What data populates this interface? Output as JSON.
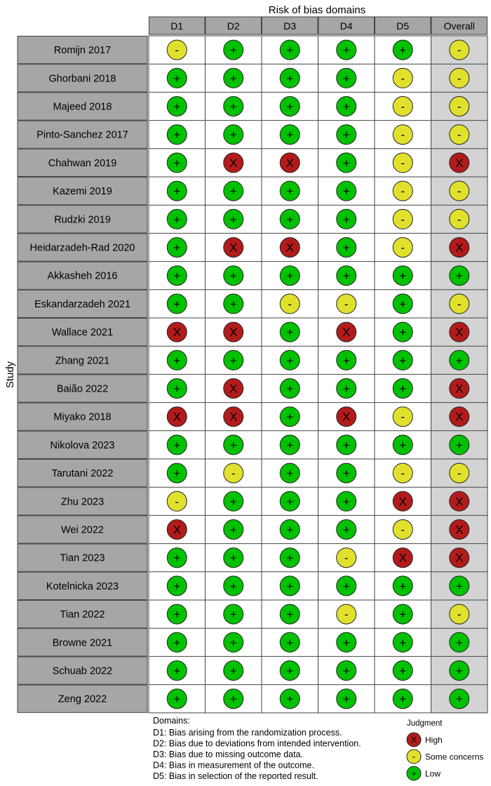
{
  "chart_data": {
    "type": "table",
    "title": "Risk of bias domains",
    "ylabel": "Study",
    "domains": [
      "D1",
      "D2",
      "D3",
      "D4",
      "D5",
      "Overall"
    ],
    "studies": [
      {
        "name": "Romijn 2017",
        "judgments": [
          "some",
          "low",
          "low",
          "low",
          "low",
          "some"
        ]
      },
      {
        "name": "Ghorbani 2018",
        "judgments": [
          "low",
          "low",
          "low",
          "low",
          "some",
          "some"
        ]
      },
      {
        "name": "Majeed 2018",
        "judgments": [
          "low",
          "low",
          "low",
          "low",
          "some",
          "some"
        ]
      },
      {
        "name": "Pinto-Sanchez 2017",
        "judgments": [
          "low",
          "low",
          "low",
          "low",
          "some",
          "some"
        ]
      },
      {
        "name": "Chahwan 2019",
        "judgments": [
          "low",
          "high",
          "high",
          "low",
          "some",
          "high"
        ]
      },
      {
        "name": "Kazemi 2019",
        "judgments": [
          "low",
          "low",
          "low",
          "low",
          "some",
          "some"
        ]
      },
      {
        "name": "Rudzki 2019",
        "judgments": [
          "low",
          "low",
          "low",
          "low",
          "some",
          "some"
        ]
      },
      {
        "name": "Heidarzadeh-Rad 2020",
        "judgments": [
          "low",
          "high",
          "high",
          "low",
          "some",
          "high"
        ]
      },
      {
        "name": "Akkasheh 2016",
        "judgments": [
          "low",
          "low",
          "low",
          "low",
          "low",
          "low"
        ]
      },
      {
        "name": "Eskandarzadeh 2021",
        "judgments": [
          "low",
          "low",
          "some",
          "some",
          "low",
          "some"
        ]
      },
      {
        "name": "Wallace 2021",
        "judgments": [
          "high",
          "high",
          "low",
          "high",
          "low",
          "high"
        ]
      },
      {
        "name": "Zhang 2021",
        "judgments": [
          "low",
          "low",
          "low",
          "low",
          "low",
          "low"
        ]
      },
      {
        "name": "Baião 2022",
        "judgments": [
          "low",
          "high",
          "low",
          "low",
          "low",
          "high"
        ]
      },
      {
        "name": "Miyako 2018",
        "judgments": [
          "high",
          "high",
          "low",
          "high",
          "some",
          "high"
        ]
      },
      {
        "name": "Nikolova 2023",
        "judgments": [
          "low",
          "low",
          "low",
          "low",
          "low",
          "low"
        ]
      },
      {
        "name": "Tarutani 2022",
        "judgments": [
          "low",
          "some",
          "low",
          "low",
          "some",
          "some"
        ]
      },
      {
        "name": "Zhu 2023",
        "judgments": [
          "some",
          "low",
          "low",
          "low",
          "high",
          "high"
        ]
      },
      {
        "name": "Wei 2022",
        "judgments": [
          "high",
          "low",
          "low",
          "low",
          "some",
          "high"
        ]
      },
      {
        "name": "Tian 2023",
        "judgments": [
          "low",
          "low",
          "low",
          "some",
          "high",
          "high"
        ]
      },
      {
        "name": "Kotelnicka 2023",
        "judgments": [
          "low",
          "low",
          "low",
          "low",
          "low",
          "low"
        ]
      },
      {
        "name": "Tian 2022",
        "judgments": [
          "low",
          "low",
          "low",
          "some",
          "low",
          "some"
        ]
      },
      {
        "name": "Browne 2021",
        "judgments": [
          "low",
          "low",
          "low",
          "low",
          "low",
          "low"
        ]
      },
      {
        "name": "Schuab 2022",
        "judgments": [
          "low",
          "low",
          "low",
          "low",
          "low",
          "low"
        ]
      },
      {
        "name": "Zeng 2022",
        "judgments": [
          "low",
          "low",
          "low",
          "low",
          "low",
          "low"
        ]
      }
    ],
    "domain_notes_title": "Domains:",
    "domain_notes": [
      "D1: Bias arising from the randomization process.",
      "D2: Bias due to deviations from intended intervention.",
      "D3: Bias due to missing outcome data.",
      "D4: Bias in measurement of the outcome.",
      "D5: Bias in selection of the reported result."
    ],
    "legend_title": "Judgment",
    "legend_placement": "bottom-right",
    "levels": {
      "high": {
        "label": "High",
        "symbol": "X",
        "color": "#b31b1b"
      },
      "some": {
        "label": "Some concerns",
        "symbol": "-",
        "color": "#e1e12d"
      },
      "low": {
        "label": "Low",
        "symbol": "+",
        "color": "#02c100"
      }
    },
    "colors": {
      "study_box": "#a6a6a6",
      "header_box": "#a6a6a6",
      "overall_column": "#d3d3d3",
      "border": "#444444"
    }
  }
}
